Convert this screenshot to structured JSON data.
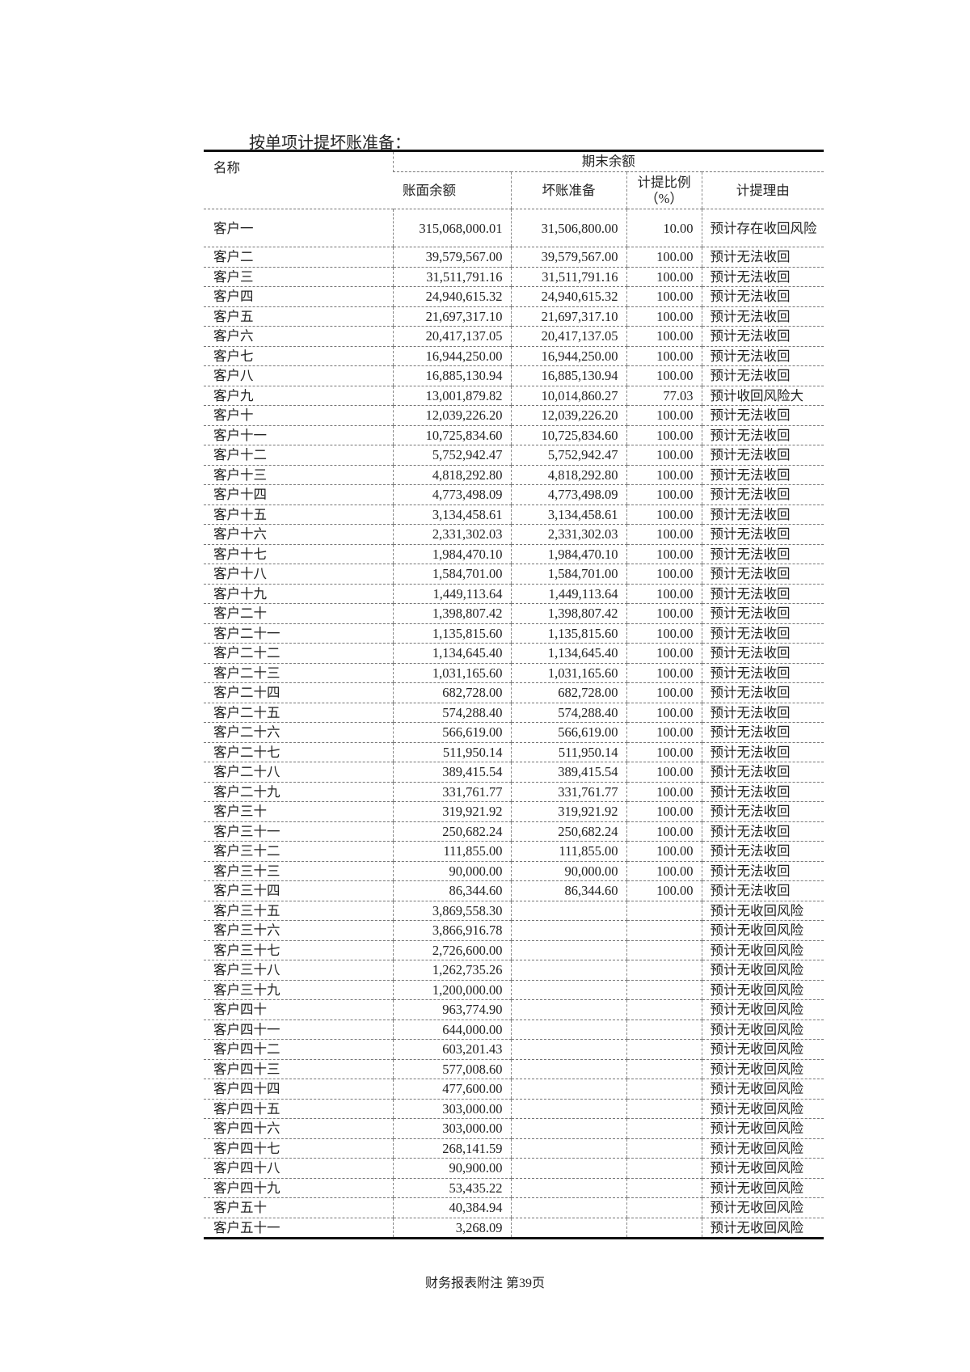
{
  "section_title": "按单项计提坏账准备：",
  "table": {
    "headers": {
      "name": "名称",
      "group": "期末余额",
      "book_balance": "账面余额",
      "bad_debt": "坏账准备",
      "ratio": "计提比例（%）",
      "reason": "计提理由"
    },
    "rows": [
      [
        "客户一",
        "315,068,000.01",
        "31,506,800.00",
        "10.00",
        "预计存在收回风险"
      ],
      [
        "客户二",
        "39,579,567.00",
        "39,579,567.00",
        "100.00",
        "预计无法收回"
      ],
      [
        "客户三",
        "31,511,791.16",
        "31,511,791.16",
        "100.00",
        "预计无法收回"
      ],
      [
        "客户四",
        "24,940,615.32",
        "24,940,615.32",
        "100.00",
        "预计无法收回"
      ],
      [
        "客户五",
        "21,697,317.10",
        "21,697,317.10",
        "100.00",
        "预计无法收回"
      ],
      [
        "客户六",
        "20,417,137.05",
        "20,417,137.05",
        "100.00",
        "预计无法收回"
      ],
      [
        "客户七",
        "16,944,250.00",
        "16,944,250.00",
        "100.00",
        "预计无法收回"
      ],
      [
        "客户八",
        "16,885,130.94",
        "16,885,130.94",
        "100.00",
        "预计无法收回"
      ],
      [
        "客户九",
        "13,001,879.82",
        "10,014,860.27",
        "77.03",
        "预计收回风险大"
      ],
      [
        "客户十",
        "12,039,226.20",
        "12,039,226.20",
        "100.00",
        "预计无法收回"
      ],
      [
        "客户十一",
        "10,725,834.60",
        "10,725,834.60",
        "100.00",
        "预计无法收回"
      ],
      [
        "客户十二",
        "5,752,942.47",
        "5,752,942.47",
        "100.00",
        "预计无法收回"
      ],
      [
        "客户十三",
        "4,818,292.80",
        "4,818,292.80",
        "100.00",
        "预计无法收回"
      ],
      [
        "客户十四",
        "4,773,498.09",
        "4,773,498.09",
        "100.00",
        "预计无法收回"
      ],
      [
        "客户十五",
        "3,134,458.61",
        "3,134,458.61",
        "100.00",
        "预计无法收回"
      ],
      [
        "客户十六",
        "2,331,302.03",
        "2,331,302.03",
        "100.00",
        "预计无法收回"
      ],
      [
        "客户十七",
        "1,984,470.10",
        "1,984,470.10",
        "100.00",
        "预计无法收回"
      ],
      [
        "客户十八",
        "1,584,701.00",
        "1,584,701.00",
        "100.00",
        "预计无法收回"
      ],
      [
        "客户十九",
        "1,449,113.64",
        "1,449,113.64",
        "100.00",
        "预计无法收回"
      ],
      [
        "客户二十",
        "1,398,807.42",
        "1,398,807.42",
        "100.00",
        "预计无法收回"
      ],
      [
        "客户二十一",
        "1,135,815.60",
        "1,135,815.60",
        "100.00",
        "预计无法收回"
      ],
      [
        "客户二十二",
        "1,134,645.40",
        "1,134,645.40",
        "100.00",
        "预计无法收回"
      ],
      [
        "客户二十三",
        "1,031,165.60",
        "1,031,165.60",
        "100.00",
        "预计无法收回"
      ],
      [
        "客户二十四",
        "682,728.00",
        "682,728.00",
        "100.00",
        "预计无法收回"
      ],
      [
        "客户二十五",
        "574,288.40",
        "574,288.40",
        "100.00",
        "预计无法收回"
      ],
      [
        "客户二十六",
        "566,619.00",
        "566,619.00",
        "100.00",
        "预计无法收回"
      ],
      [
        "客户二十七",
        "511,950.14",
        "511,950.14",
        "100.00",
        "预计无法收回"
      ],
      [
        "客户二十八",
        "389,415.54",
        "389,415.54",
        "100.00",
        "预计无法收回"
      ],
      [
        "客户二十九",
        "331,761.77",
        "331,761.77",
        "100.00",
        "预计无法收回"
      ],
      [
        "客户三十",
        "319,921.92",
        "319,921.92",
        "100.00",
        "预计无法收回"
      ],
      [
        "客户三十一",
        "250,682.24",
        "250,682.24",
        "100.00",
        "预计无法收回"
      ],
      [
        "客户三十二",
        "111,855.00",
        "111,855.00",
        "100.00",
        "预计无法收回"
      ],
      [
        "客户三十三",
        "90,000.00",
        "90,000.00",
        "100.00",
        "预计无法收回"
      ],
      [
        "客户三十四",
        "86,344.60",
        "86,344.60",
        "100.00",
        "预计无法收回"
      ],
      [
        "客户三十五",
        "3,869,558.30",
        "",
        "",
        "预计无收回风险"
      ],
      [
        "客户三十六",
        "3,866,916.78",
        "",
        "",
        "预计无收回风险"
      ],
      [
        "客户三十七",
        "2,726,600.00",
        "",
        "",
        "预计无收回风险"
      ],
      [
        "客户三十八",
        "1,262,735.26",
        "",
        "",
        "预计无收回风险"
      ],
      [
        "客户三十九",
        "1,200,000.00",
        "",
        "",
        "预计无收回风险"
      ],
      [
        "客户四十",
        "963,774.90",
        "",
        "",
        "预计无收回风险"
      ],
      [
        "客户四十一",
        "644,000.00",
        "",
        "",
        "预计无收回风险"
      ],
      [
        "客户四十二",
        "603,201.43",
        "",
        "",
        "预计无收回风险"
      ],
      [
        "客户四十三",
        "577,008.60",
        "",
        "",
        "预计无收回风险"
      ],
      [
        "客户四十四",
        "477,600.00",
        "",
        "",
        "预计无收回风险"
      ],
      [
        "客户四十五",
        "303,000.00",
        "",
        "",
        "预计无收回风险"
      ],
      [
        "客户四十六",
        "303,000.00",
        "",
        "",
        "预计无收回风险"
      ],
      [
        "客户四十七",
        "268,141.59",
        "",
        "",
        "预计无收回风险"
      ],
      [
        "客户四十八",
        "90,900.00",
        "",
        "",
        "预计无收回风险"
      ],
      [
        "客户四十九",
        "53,435.22",
        "",
        "",
        "预计无收回风险"
      ],
      [
        "客户五十",
        "40,384.94",
        "",
        "",
        "预计无收回风险"
      ],
      [
        "客户五十一",
        "3,268.09",
        "",
        "",
        "预计无收回风险"
      ]
    ]
  },
  "footer": "财务报表附注  第39页"
}
